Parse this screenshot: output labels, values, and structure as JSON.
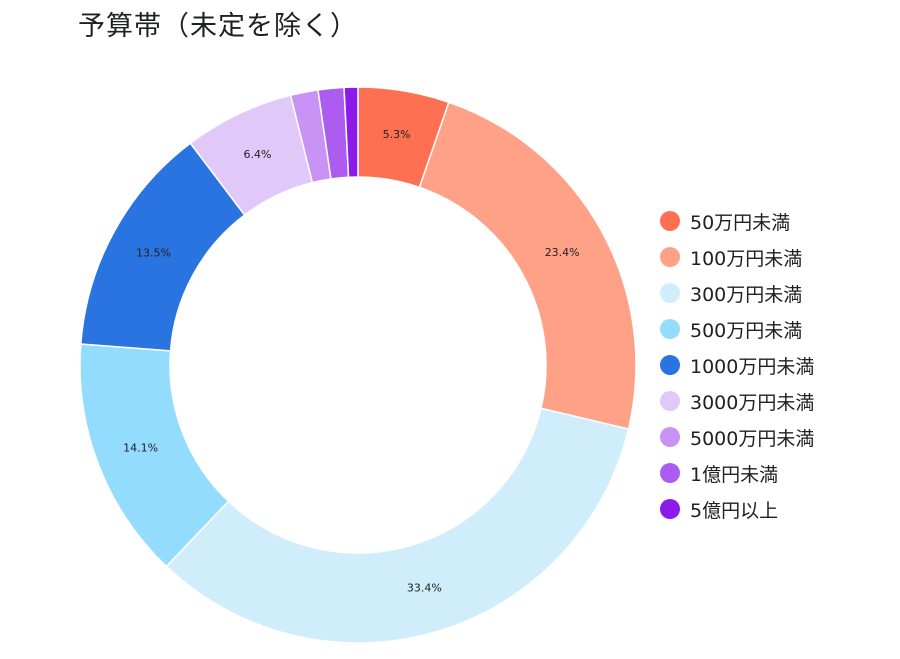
{
  "title": "予算帯（未定を除く）",
  "chart_data": {
    "type": "pie",
    "donut": true,
    "legend_position": "right",
    "slices": [
      {
        "label": "50万円未満",
        "value": 5.3,
        "display": "5.3%",
        "color": "#ff7052"
      },
      {
        "label": "100万円未満",
        "value": 23.4,
        "display": "23.4%",
        "color": "#ffa187"
      },
      {
        "label": "300万円未満",
        "value": 33.4,
        "display": "33.4%",
        "color": "#d0edfc"
      },
      {
        "label": "500万円未満",
        "value": 14.1,
        "display": "14.1%",
        "color": "#94dcfd"
      },
      {
        "label": "1000万円未満",
        "value": 13.5,
        "display": "13.5%",
        "color": "#2a74e1"
      },
      {
        "label": "3000万円未満",
        "value": 6.4,
        "display": "6.4%",
        "color": "#e0c8f8"
      },
      {
        "label": "5000万円未満",
        "value": 1.6,
        "display": "",
        "color": "#c993f5"
      },
      {
        "label": "1億円未満",
        "value": 1.5,
        "display": "",
        "color": "#ad5cf0"
      },
      {
        "label": "5億円以上",
        "value": 0.8,
        "display": "",
        "color": "#8c1ae8"
      }
    ]
  }
}
